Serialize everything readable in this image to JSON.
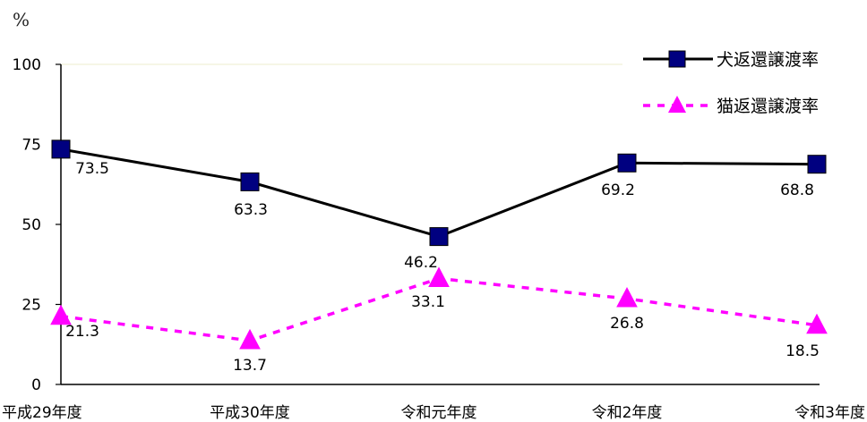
{
  "unit": "%",
  "chart_data": {
    "type": "line",
    "categories": [
      "平成29年度",
      "平成30年度",
      "令和元年度",
      "令和2年度",
      "令和3年度"
    ],
    "ylim": [
      0,
      100
    ],
    "yticks": [
      0,
      25,
      50,
      75,
      100
    ],
    "grid": false,
    "legend_position": "top-right",
    "series": [
      {
        "name": "犬返還譲渡率",
        "values": [
          73.5,
          63.3,
          46.2,
          69.2,
          68.8
        ],
        "labels": [
          "73.5",
          "63.3",
          "46.2",
          "69.2",
          "68.8"
        ],
        "color": "#000000",
        "marker_color": "#000080",
        "marker": "square",
        "line_style": "solid"
      },
      {
        "name": "猫返還譲渡率",
        "values": [
          21.3,
          13.7,
          33.1,
          26.8,
          18.5
        ],
        "labels": [
          "21.3",
          "13.7",
          "33.1",
          "26.8",
          "18.5"
        ],
        "color": "#ff00ff",
        "marker_color": "#ff00ff",
        "marker": "triangle",
        "line_style": "dashed"
      }
    ]
  }
}
